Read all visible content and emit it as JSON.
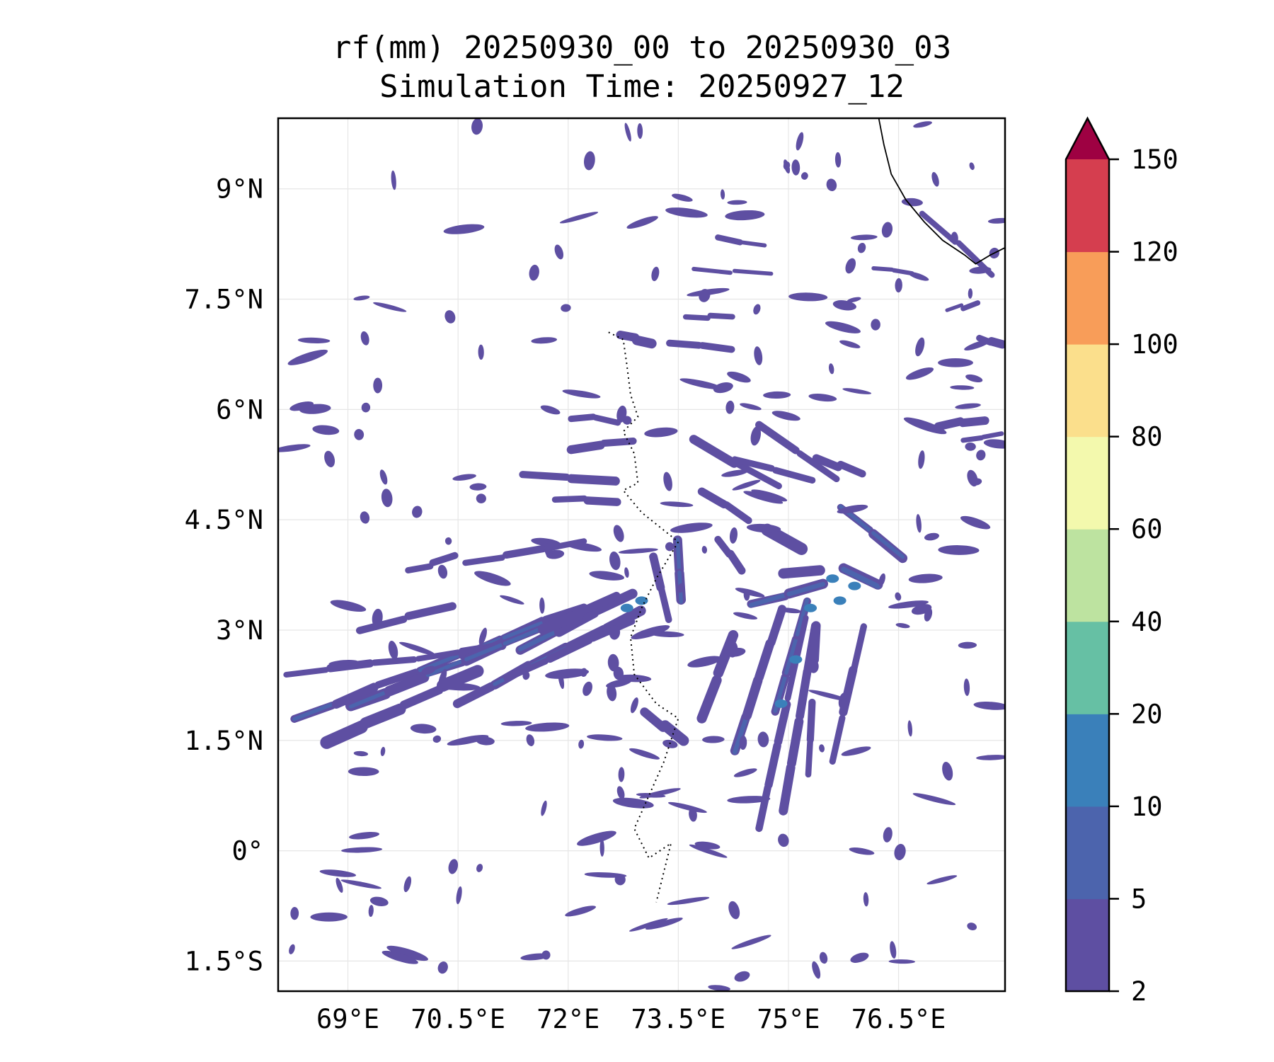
{
  "chart_data": {
    "type": "heatmap",
    "title_line1": "rf(mm) 20250930_00 to 20250930_03",
    "title_line2": "Simulation Time: 20250927_12",
    "xlim": [
      68.05,
      77.95
    ],
    "ylim": [
      -1.91,
      9.96
    ],
    "xticks": [
      69,
      70.5,
      72,
      73.5,
      75,
      76.5
    ],
    "xtick_labels": [
      "69°E",
      "70.5°E",
      "72°E",
      "73.5°E",
      "75°E",
      "76.5°E"
    ],
    "yticks": [
      9,
      7.5,
      6,
      4.5,
      3,
      1.5,
      0,
      -1.5
    ],
    "ytick_labels": [
      "9°N",
      "7.5°N",
      "6°N",
      "4.5°N",
      "3°N",
      "1.5°N",
      "0°",
      "1.5°S"
    ],
    "grid": true,
    "colorbar": {
      "levels": [
        2,
        5,
        10,
        20,
        40,
        60,
        80,
        100,
        120,
        150
      ],
      "tick_labels": [
        "2",
        "5",
        "10",
        "20",
        "40",
        "60",
        "80",
        "100",
        "120",
        "150"
      ],
      "colors": [
        "#5e4fa2",
        "#4c64ad",
        "#3a80ba",
        "#66c0a4",
        "#bde3a0",
        "#f3f9ad",
        "#fbdf8c",
        "#f89d59",
        "#d53e4f"
      ],
      "extend_color": "#9e0142",
      "extend": "max"
    },
    "rain_streaks_lonlat": [
      [
        68.71,
        1.46,
        72.93,
        3.51,
        14
      ],
      [
        68.27,
        1.79,
        72.27,
        3.34,
        12
      ],
      [
        68.16,
        2.4,
        71.16,
        2.79,
        10
      ],
      [
        69.04,
        1.96,
        72.71,
        3.46,
        12
      ],
      [
        70.49,
        2.01,
        73.04,
        3.29,
        12
      ],
      [
        71.16,
        2.34,
        72.93,
        3.12,
        10
      ],
      [
        69.16,
        3.01,
        70.49,
        3.34,
        9
      ],
      [
        69.82,
        3.79,
        70.49,
        4.01,
        9
      ],
      [
        70.6,
        3.9,
        72.27,
        4.23,
        9
      ],
      [
        71.82,
        4.79,
        72.71,
        4.73,
        10
      ],
      [
        71.38,
        5.12,
        72.71,
        5.01,
        10
      ],
      [
        72.04,
        5.46,
        72.93,
        5.57,
        10
      ],
      [
        72.04,
        5.9,
        72.71,
        5.84,
        9
      ],
      [
        73.16,
        4.01,
        73.38,
        3.12,
        10
      ],
      [
        73.49,
        4.23,
        73.54,
        3.34,
        12
      ],
      [
        73.04,
        1.9,
        73.6,
        1.46,
        12
      ],
      [
        73.82,
        1.79,
        74.27,
        3.01,
        12
      ],
      [
        74.27,
        1.34,
        74.93,
        3.34,
        14
      ],
      [
        74.82,
        1.9,
        75.27,
        3.46,
        12
      ],
      [
        74.6,
        0.33,
        75.38,
        3.79,
        10
      ],
      [
        74.93,
        0.56,
        75.38,
        3.12,
        10
      ],
      [
        75.27,
        1.01,
        75.38,
        3.12,
        10
      ],
      [
        75.6,
        1.23,
        76.04,
        3.12,
        10
      ],
      [
        74.71,
        4.34,
        76.27,
        3.57,
        16
      ],
      [
        74.93,
        3.79,
        76.04,
        3.79,
        14
      ],
      [
        75.71,
        4.68,
        76.6,
        3.96,
        12
      ],
      [
        74.49,
        3.34,
        76.04,
        3.79,
        14
      ],
      [
        73.71,
        5.57,
        74.93,
        4.9,
        10
      ],
      [
        73.82,
        4.9,
        74.49,
        4.46,
        9
      ],
      [
        74.04,
        4.23,
        74.38,
        3.79,
        9
      ],
      [
        74.27,
        5.34,
        75.38,
        5.01,
        9
      ],
      [
        74.6,
        5.79,
        75.71,
        5.01,
        9
      ],
      [
        75.38,
        5.34,
        76.04,
        5.12,
        9
      ],
      [
        73.38,
        6.9,
        74.27,
        6.79,
        8
      ],
      [
        73.6,
        7.23,
        74.27,
        7.29,
        8
      ],
      [
        72.71,
        7.01,
        73.16,
        6.9,
        12
      ],
      [
        73.71,
        7.9,
        74.82,
        7.84,
        7
      ],
      [
        74.04,
        8.34,
        74.71,
        8.23,
        7
      ],
      [
        76.16,
        7.9,
        76.71,
        7.84,
        6
      ],
      [
        76.82,
        8.68,
        77.82,
        7.79,
        10
      ],
      [
        77.16,
        7.34,
        77.6,
        7.46,
        6
      ],
      [
        77.04,
        5.79,
        77.71,
        5.84,
        10
      ],
      [
        77.38,
        5.57,
        77.93,
        5.68,
        8
      ],
      [
        77.6,
        6.96,
        77.93,
        6.9,
        10
      ]
    ],
    "intense_cells_lonlat": [
      [
        75.6,
        3.7
      ],
      [
        75.9,
        3.6
      ],
      [
        75.3,
        3.3
      ],
      [
        75.1,
        2.6
      ],
      [
        74.9,
        2.0
      ],
      [
        75.7,
        3.4
      ],
      [
        73.0,
        3.4
      ],
      [
        72.8,
        3.3
      ]
    ],
    "coastline_lonlat": [
      [
        76.23,
        9.96
      ],
      [
        76.3,
        9.6
      ],
      [
        76.4,
        9.2
      ],
      [
        76.6,
        8.85
      ],
      [
        76.85,
        8.55
      ],
      [
        77.1,
        8.3
      ],
      [
        77.4,
        8.1
      ],
      [
        77.55,
        7.98
      ],
      [
        77.75,
        8.1
      ],
      [
        77.95,
        8.2
      ]
    ],
    "islands_dotted_lonlat": [
      [
        72.55,
        7.05
      ],
      [
        72.75,
        6.95
      ],
      [
        72.8,
        6.6
      ],
      [
        72.85,
        6.2
      ],
      [
        72.95,
        5.9
      ],
      [
        72.75,
        5.7
      ],
      [
        72.9,
        5.4
      ],
      [
        72.95,
        5.0
      ],
      [
        72.75,
        4.9
      ],
      [
        73.0,
        4.6
      ],
      [
        73.5,
        4.2
      ],
      [
        73.2,
        3.7
      ],
      [
        73.0,
        3.3
      ],
      [
        72.85,
        2.9
      ],
      [
        72.9,
        2.4
      ],
      [
        73.2,
        2.0
      ],
      [
        73.5,
        1.8
      ],
      [
        73.3,
        1.2
      ],
      [
        72.9,
        0.3
      ],
      [
        73.1,
        -0.1
      ],
      [
        73.4,
        0.1
      ],
      [
        73.2,
        -0.7
      ]
    ]
  }
}
